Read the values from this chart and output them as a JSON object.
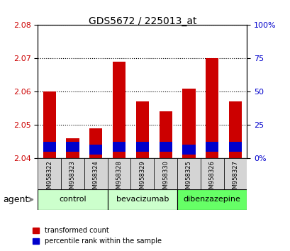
{
  "title": "GDS5672 / 225013_at",
  "samples": [
    "GSM958322",
    "GSM958323",
    "GSM958324",
    "GSM958328",
    "GSM958329",
    "GSM958330",
    "GSM958325",
    "GSM958326",
    "GSM958327"
  ],
  "red_values": [
    2.06,
    2.046,
    2.049,
    2.069,
    2.057,
    2.054,
    2.061,
    2.07,
    2.057
  ],
  "blue_bottom": [
    2.042,
    2.042,
    2.041,
    2.042,
    2.042,
    2.042,
    2.041,
    2.042,
    2.042
  ],
  "blue_heights": [
    0.003,
    0.003,
    0.003,
    0.003,
    0.003,
    0.003,
    0.003,
    0.003,
    0.003
  ],
  "bar_base": 2.04,
  "ylim": [
    2.04,
    2.08
  ],
  "yticks_left": [
    2.04,
    2.05,
    2.06,
    2.07,
    2.08
  ],
  "groups": [
    {
      "label": "control",
      "indices": [
        0,
        1,
        2
      ],
      "color": "#ccffcc"
    },
    {
      "label": "bevacizumab",
      "indices": [
        3,
        4,
        5
      ],
      "color": "#ccffcc"
    },
    {
      "label": "dibenzazepine",
      "indices": [
        6,
        7,
        8
      ],
      "color": "#66ff66"
    }
  ],
  "red_color": "#cc0000",
  "blue_color": "#0000cc",
  "sample_bg": "#d4d4d4",
  "legend_red": "transformed count",
  "legend_blue": "percentile rank within the sample"
}
